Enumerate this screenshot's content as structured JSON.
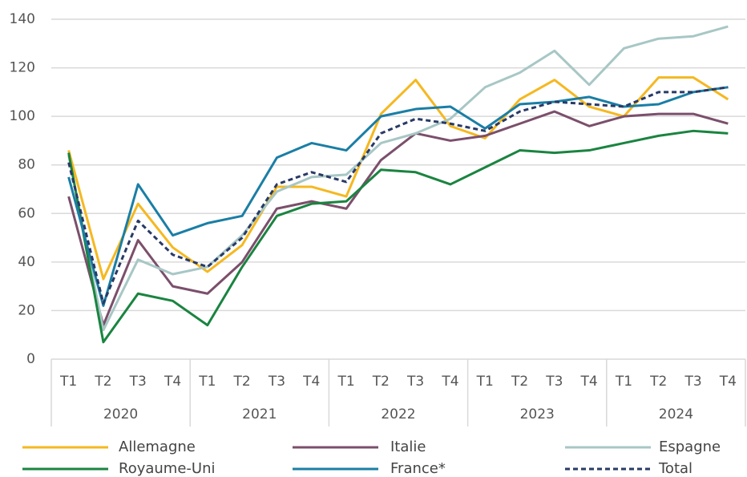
{
  "chart_data": {
    "type": "line",
    "categories": [
      "T1",
      "T2",
      "T3",
      "T4",
      "T1",
      "T2",
      "T3",
      "T4",
      "T1",
      "T2",
      "T3",
      "T4",
      "T1",
      "T2",
      "T3",
      "T4",
      "T1",
      "T2",
      "T3",
      "T4"
    ],
    "years": [
      "2020",
      "2021",
      "2022",
      "2023",
      "2024"
    ],
    "ylim": [
      0,
      140
    ],
    "yticks": [
      0,
      20,
      40,
      60,
      80,
      100,
      120,
      140
    ],
    "grid": true,
    "legend": "bottom",
    "series": [
      {
        "name": "Allemagne",
        "color": "#f5b820",
        "values": [
          86,
          33,
          64,
          46,
          36,
          47,
          71,
          71,
          67,
          101,
          115,
          96,
          91,
          107,
          115,
          104,
          100,
          116,
          116,
          107
        ]
      },
      {
        "name": "Italie",
        "color": "#7b4f6b",
        "values": [
          67,
          14,
          49,
          30,
          27,
          40,
          62,
          65,
          62,
          82,
          93,
          90,
          92,
          97,
          102,
          96,
          100,
          101,
          101,
          97
        ]
      },
      {
        "name": "Espagne",
        "color": "#a7c7c5",
        "values": [
          84,
          12,
          41,
          35,
          38,
          51,
          69,
          75,
          76,
          89,
          93,
          99,
          112,
          118,
          127,
          113,
          128,
          132,
          133,
          137
        ]
      },
      {
        "name": "Royaume-Uni",
        "color": "#1a8440",
        "values": [
          85,
          7,
          27,
          24,
          14,
          38,
          59,
          64,
          65,
          78,
          77,
          72,
          79,
          86,
          85,
          86,
          89,
          92,
          94,
          93
        ]
      },
      {
        "name": "France*",
        "color": "#1a7ea5",
        "values": [
          75,
          22,
          72,
          51,
          56,
          59,
          83,
          89,
          86,
          100,
          103,
          104,
          95,
          105,
          106,
          108,
          104,
          105,
          110,
          112
        ]
      },
      {
        "name": "Total",
        "color": "#283a66",
        "dashed": true,
        "values": [
          81,
          23,
          57,
          43,
          38,
          50,
          72,
          77,
          73,
          93,
          99,
          97,
          94,
          102,
          106,
          105,
          104,
          110,
          110,
          112
        ]
      }
    ]
  }
}
